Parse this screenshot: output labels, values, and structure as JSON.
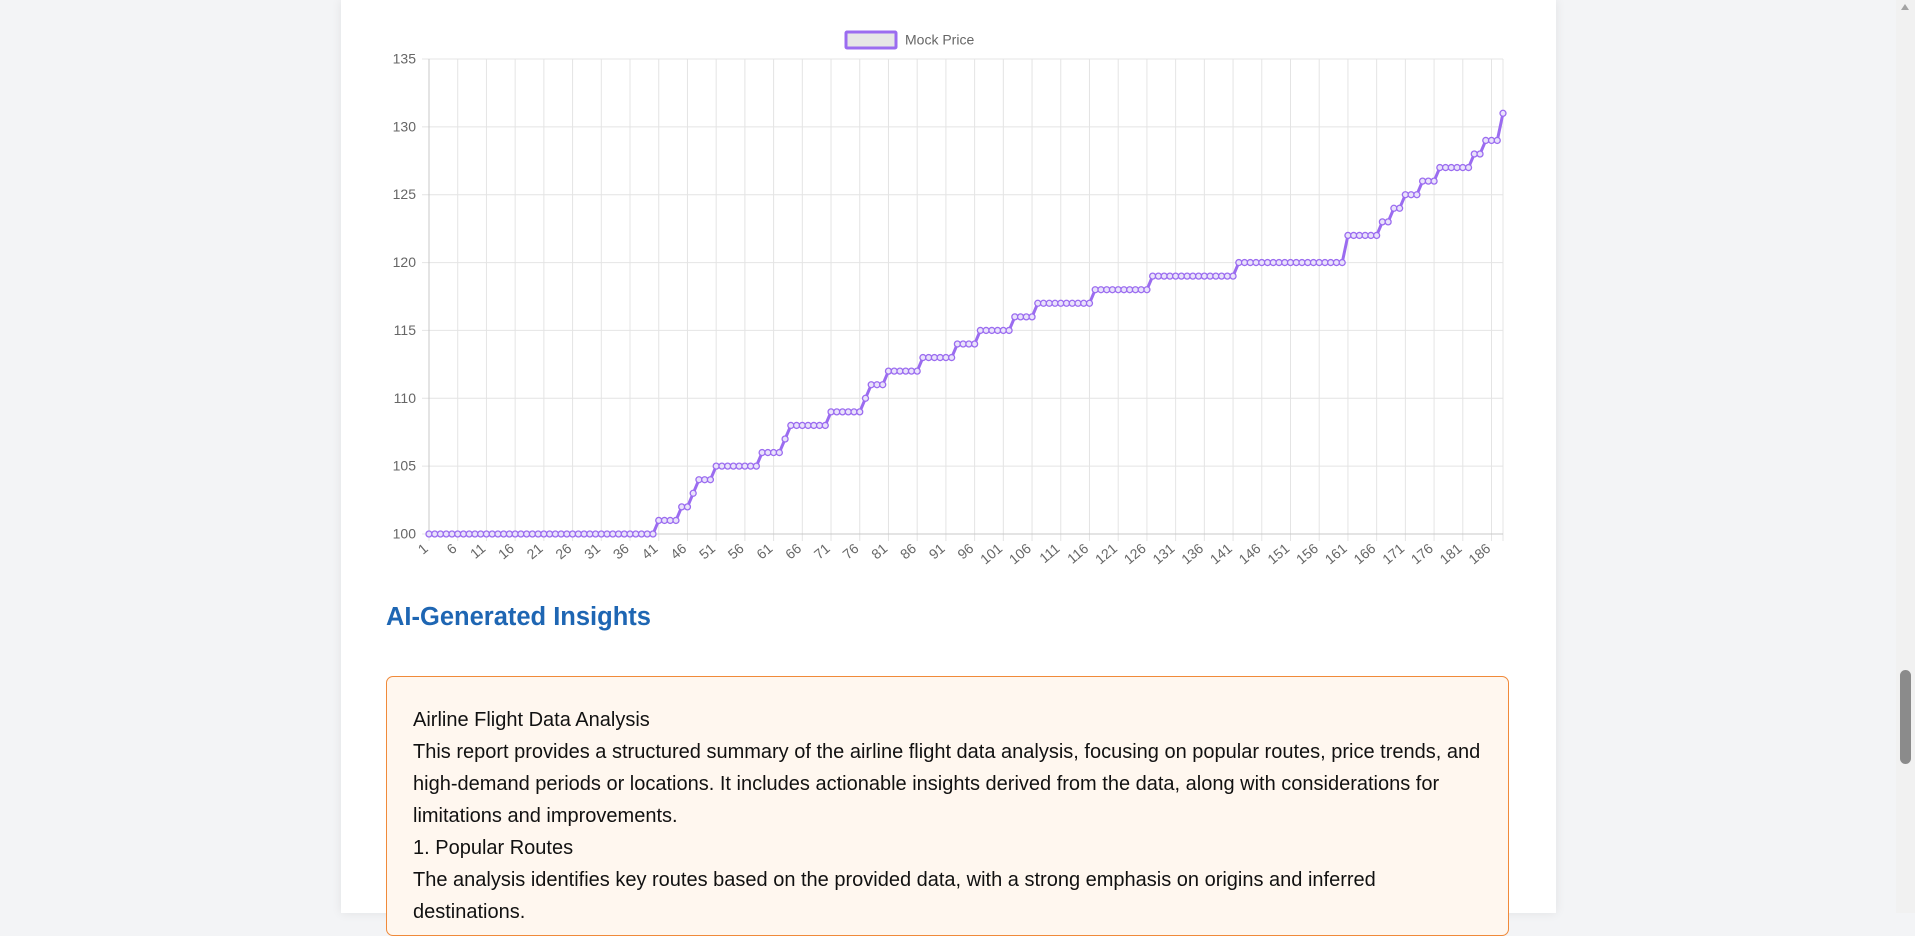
{
  "chart_data": {
    "type": "line",
    "xlabel": "",
    "ylabel": "",
    "ylim": [
      100,
      135
    ],
    "y_ticks": [
      100,
      105,
      110,
      115,
      120,
      125,
      130,
      135
    ],
    "x_tick_labels": [
      "1",
      "6",
      "11",
      "16",
      "21",
      "26",
      "31",
      "36",
      "41",
      "46",
      "51",
      "56",
      "61",
      "66",
      "71",
      "76",
      "81",
      "86",
      "91",
      "96",
      "101",
      "106",
      "111",
      "116",
      "121",
      "126",
      "131",
      "136",
      "141",
      "146",
      "151",
      "156",
      "161",
      "166",
      "171",
      "176",
      "181",
      "186"
    ],
    "grid": true,
    "legend_position": "top",
    "series": [
      {
        "name": "Mock Price",
        "color": "#9b6cf0",
        "x_start": 1,
        "values": [
          100,
          100,
          100,
          100,
          100,
          100,
          100,
          100,
          100,
          100,
          100,
          100,
          100,
          100,
          100,
          100,
          100,
          100,
          100,
          100,
          100,
          100,
          100,
          100,
          100,
          100,
          100,
          100,
          100,
          100,
          100,
          100,
          100,
          100,
          100,
          100,
          100,
          100,
          100,
          100,
          101,
          101,
          101,
          101,
          102,
          102,
          103,
          104,
          104,
          104,
          105,
          105,
          105,
          105,
          105,
          105,
          105,
          105,
          106,
          106,
          106,
          106,
          107,
          108,
          108,
          108,
          108,
          108,
          108,
          108,
          109,
          109,
          109,
          109,
          109,
          109,
          110,
          111,
          111,
          111,
          112,
          112,
          112,
          112,
          112,
          112,
          113,
          113,
          113,
          113,
          113,
          113,
          114,
          114,
          114,
          114,
          115,
          115,
          115,
          115,
          115,
          115,
          116,
          116,
          116,
          116,
          117,
          117,
          117,
          117,
          117,
          117,
          117,
          117,
          117,
          117,
          118,
          118,
          118,
          118,
          118,
          118,
          118,
          118,
          118,
          118,
          119,
          119,
          119,
          119,
          119,
          119,
          119,
          119,
          119,
          119,
          119,
          119,
          119,
          119,
          119,
          120,
          120,
          120,
          120,
          120,
          120,
          120,
          120,
          120,
          120,
          120,
          120,
          120,
          120,
          120,
          120,
          120,
          120,
          120,
          122,
          122,
          122,
          122,
          122,
          122,
          123,
          123,
          124,
          124,
          125,
          125,
          125,
          126,
          126,
          126,
          127,
          127,
          127,
          127,
          127,
          127,
          128,
          128,
          129,
          129,
          129,
          131
        ]
      }
    ]
  },
  "insights": {
    "heading": "AI-Generated Insights",
    "paragraphs": [
      "Airline Flight Data Analysis",
      "This report provides a structured summary of the airline flight data analysis, focusing on popular routes, price trends, and high-demand periods or locations. It includes actionable insights derived from the data, along with considerations for limitations and improvements.",
      "1. Popular Routes",
      "The analysis identifies key routes based on the provided data, with a strong emphasis on origins and inferred destinations."
    ]
  },
  "colors": {
    "accent": "#1e66b3",
    "box_border": "#f08a3a",
    "box_background": "#fff7ef",
    "series_line": "#9b6cf0"
  }
}
